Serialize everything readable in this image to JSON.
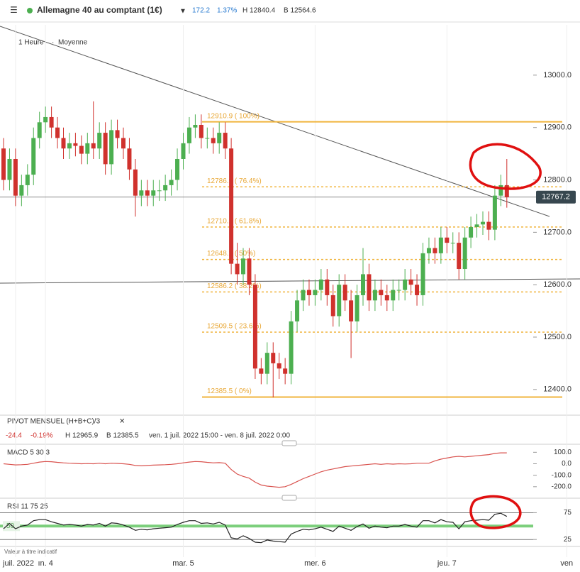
{
  "header": {
    "title": "Allemagne 40 au comptant (1€)",
    "change": "172.2",
    "change_pct": "1.37%",
    "high": "H 12840.4",
    "low": "B 12564.6",
    "interval": "1 Heure",
    "style": "Moyenne"
  },
  "pivot": {
    "name": "PIVOT MENSUEL (H+B+C)/3",
    "change": "-24.4",
    "change_pct": "-0.19%",
    "high": "H 12965.9",
    "low": "B 12385.5",
    "period": "ven. 1 juil. 2022 15:00 - ven. 8 juil. 2022 0:00"
  },
  "note": "Valeur à titre indicatif",
  "chart_data": [
    {
      "type": "candlestick",
      "categories": [
        null,
        null,
        "juil. 2022",
        null,
        null,
        null,
        null,
        "ın. 4",
        null,
        null,
        null,
        null,
        null,
        null,
        null,
        null,
        null,
        null,
        null,
        null,
        null,
        null,
        null,
        null,
        null,
        null,
        null,
        null,
        null,
        null,
        "mar. 5",
        null,
        null,
        null,
        null,
        null,
        null,
        null,
        null,
        null,
        null,
        null,
        null,
        null,
        null,
        null,
        null,
        null,
        null,
        null,
        null,
        null,
        "mer. 6",
        null,
        null,
        null,
        null,
        null,
        null,
        null,
        null,
        null,
        null,
        null,
        null,
        null,
        null,
        null,
        null,
        null,
        null,
        null,
        null,
        null,
        "jeu. 7",
        null,
        null,
        null,
        null,
        null,
        null,
        null,
        null,
        null,
        null,
        null,
        null,
        null,
        null,
        null,
        null,
        null,
        null,
        null,
        "ven"
      ],
      "open": [
        12860,
        12800,
        12840,
        12770,
        12790,
        12810,
        12880,
        12910,
        12920,
        12900,
        12880,
        12860,
        12870,
        12865,
        12850,
        12870,
        12860,
        12890,
        12830,
        12895,
        12880,
        12860,
        12820,
        12770,
        12780,
        12770,
        12780,
        12780,
        12790,
        12800,
        12840,
        12870,
        12900,
        12905,
        12880,
        12880,
        12870,
        12890,
        12860,
        12640,
        12620,
        12650,
        12600,
        12440,
        12430,
        12470,
        12450,
        12440,
        12430,
        12530,
        12570,
        12590,
        12580,
        12590,
        12610,
        12580,
        12540,
        12600,
        12570,
        12530,
        12580,
        12620,
        12570,
        12590,
        12580,
        12570,
        12590,
        12590,
        12610,
        12600,
        12580,
        12660,
        12670,
        12660,
        12690,
        12680,
        12680,
        12630,
        12690,
        12710,
        12715,
        12720,
        12705,
        12770,
        12790,
        null,
        null,
        null,
        null,
        null,
        null,
        null,
        null,
        null,
        null
      ],
      "high": [
        12880,
        12860,
        12860,
        12810,
        12830,
        12900,
        12930,
        12940,
        12940,
        12920,
        12900,
        12890,
        12890,
        12885,
        12890,
        12950,
        12910,
        12910,
        12915,
        12915,
        12900,
        12880,
        12840,
        12800,
        12800,
        12800,
        12800,
        12810,
        12820,
        12860,
        12890,
        12920,
        12925,
        12925,
        12900,
        12900,
        12910,
        12910,
        12880,
        12680,
        12670,
        12670,
        12620,
        12460,
        12490,
        12490,
        12470,
        12460,
        12550,
        12590,
        12610,
        12610,
        12610,
        12630,
        12630,
        12600,
        12620,
        12620,
        12590,
        12600,
        12670,
        12640,
        12610,
        12610,
        12600,
        12610,
        12610,
        12630,
        12630,
        12620,
        12680,
        12690,
        12690,
        12710,
        12710,
        12700,
        12700,
        12710,
        12730,
        12735,
        12740,
        12740,
        12790,
        12810,
        12840,
        null,
        null,
        null,
        null,
        null,
        null,
        null,
        null,
        null,
        null
      ],
      "low": [
        12780,
        12780,
        12750,
        12750,
        12770,
        12790,
        12860,
        12890,
        12880,
        12860,
        12840,
        12840,
        12845,
        12830,
        12830,
        12840,
        12840,
        12810,
        12810,
        12860,
        12840,
        12800,
        12730,
        12750,
        12750,
        12750,
        12760,
        12760,
        12770,
        12780,
        12820,
        12850,
        12880,
        12860,
        12860,
        12850,
        12850,
        12840,
        12620,
        12600,
        12600,
        12580,
        12420,
        12410,
        12410,
        12385,
        12420,
        12410,
        12410,
        12510,
        12550,
        12560,
        12560,
        12570,
        12560,
        12520,
        12520,
        12550,
        12460,
        12510,
        12560,
        12550,
        12550,
        12560,
        12550,
        12550,
        12570,
        12570,
        12580,
        12560,
        12560,
        12640,
        12640,
        12640,
        12660,
        12660,
        12610,
        12610,
        12670,
        12690,
        12695,
        12685,
        12685,
        12750,
        12747,
        null,
        null,
        null,
        null,
        null,
        null,
        null,
        null,
        null,
        null
      ],
      "close": [
        12800,
        12840,
        12770,
        12790,
        12810,
        12880,
        12910,
        12920,
        12900,
        12880,
        12860,
        12870,
        12865,
        12850,
        12870,
        12860,
        12890,
        12830,
        12895,
        12880,
        12860,
        12820,
        12770,
        12780,
        12770,
        12780,
        12780,
        12790,
        12800,
        12840,
        12870,
        12900,
        12905,
        12880,
        12880,
        12870,
        12890,
        12860,
        12640,
        12620,
        12650,
        12600,
        12440,
        12430,
        12470,
        12450,
        12440,
        12430,
        12530,
        12570,
        12590,
        12580,
        12590,
        12610,
        12580,
        12540,
        12600,
        12570,
        12530,
        12580,
        12620,
        12570,
        12590,
        12580,
        12570,
        12590,
        12590,
        12610,
        12600,
        12580,
        12660,
        12670,
        12660,
        12690,
        12680,
        12680,
        12630,
        12690,
        12710,
        12715,
        12720,
        12705,
        12770,
        12790,
        12767,
        null,
        null,
        null,
        null,
        null,
        null,
        null,
        null,
        null,
        null
      ],
      "up_color": "#4caf50",
      "down_color": "#d0312d",
      "ylim": [
        12351,
        13096
      ],
      "yticks": [
        {
          "value": 12400,
          "label": "12400.0"
        },
        {
          "value": 12500,
          "label": "12500.0"
        },
        {
          "value": 12600,
          "label": "12600.0"
        },
        {
          "value": 12700,
          "label": "12700.0"
        },
        {
          "value": 12800,
          "label": "12800.0"
        },
        {
          "value": 12900,
          "label": "12900.0"
        },
        {
          "value": 13000,
          "label": "13000.0"
        }
      ],
      "current_price": 12767.2,
      "levels": [
        {
          "value": 12910.9,
          "label": "12910.9 ( 100%)"
        },
        {
          "value": 12786.9,
          "label": "12786.9 ( 76.4%)"
        },
        {
          "value": 12710.2,
          "label": "12710.2 ( 61.8%)"
        },
        {
          "value": 12648.2,
          "label": "12648.2 ( 50%)"
        },
        {
          "value": 12586.2,
          "label": "12586.2 ( 38.2%)"
        },
        {
          "value": 12509.5,
          "label": "12509.5 ( 23.6%)"
        },
        {
          "value": 12385.5,
          "label": "12385.5 ( 0%)"
        }
      ],
      "level_color": "#f0b43c"
    },
    {
      "type": "line",
      "title": "MACD  5  30  3",
      "series": [
        {
          "color": "#d9534f",
          "values": [
            0,
            -5,
            -10,
            -8,
            -5,
            5,
            15,
            20,
            18,
            12,
            8,
            5,
            3,
            0,
            2,
            0,
            5,
            0,
            5,
            3,
            0,
            -5,
            -15,
            -18,
            -15,
            -12,
            -10,
            -8,
            -5,
            0,
            8,
            15,
            20,
            18,
            12,
            8,
            10,
            5,
            -50,
            -90,
            -110,
            -125,
            -160,
            -185,
            -195,
            -200,
            -205,
            -200,
            -180,
            -155,
            -130,
            -110,
            -90,
            -70,
            -55,
            -45,
            -35,
            -25,
            -20,
            -15,
            -10,
            -5,
            0,
            -5,
            0,
            -3,
            0,
            -2,
            0,
            5,
            5,
            5,
            25,
            40,
            50,
            60,
            65,
            60,
            65,
            70,
            75,
            80,
            90,
            95,
            95,
            null,
            null,
            null,
            null,
            null,
            null,
            null,
            null,
            null,
            null
          ]
        }
      ],
      "ylim": [
        -300,
        170
      ],
      "yticks": [
        {
          "value": 100,
          "label": "100.0"
        },
        {
          "value": 0,
          "label": "0.0"
        },
        {
          "value": -100,
          "label": "-100.0"
        },
        {
          "value": -200,
          "label": "-200.0"
        }
      ]
    },
    {
      "type": "line",
      "title": "RSI  11  75  25",
      "series": [
        {
          "color": "#222222",
          "values": [
            45,
            55,
            45,
            50,
            52,
            60,
            62,
            62,
            58,
            55,
            52,
            53,
            52,
            50,
            53,
            52,
            55,
            50,
            56,
            55,
            52,
            48,
            42,
            44,
            43,
            45,
            46,
            47,
            48,
            53,
            57,
            60,
            60,
            55,
            56,
            54,
            57,
            52,
            28,
            26,
            32,
            27,
            20,
            19,
            24,
            22,
            21,
            20,
            35,
            40,
            44,
            43,
            45,
            48,
            44,
            40,
            50,
            46,
            42,
            49,
            54,
            46,
            50,
            48,
            47,
            50,
            50,
            53,
            50,
            48,
            60,
            60,
            56,
            62,
            58,
            57,
            45,
            58,
            60,
            61,
            62,
            61,
            72,
            74,
            68,
            null,
            null,
            null,
            null,
            null,
            null,
            null,
            null,
            null,
            null
          ]
        }
      ],
      "ylim": [
        12,
        102
      ],
      "yticks": [
        75,
        25
      ],
      "midline": 50
    }
  ]
}
